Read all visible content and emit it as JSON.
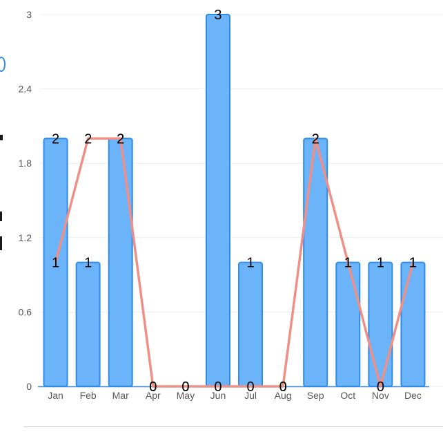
{
  "chart_data": {
    "type": "bar",
    "categories": [
      "Jan",
      "Feb",
      "Mar",
      "Apr",
      "May",
      "Jun",
      "Jul",
      "Aug",
      "Sep",
      "Oct",
      "Nov",
      "Dec"
    ],
    "series": [
      {
        "type": "bar",
        "values": [
          2,
          1,
          2,
          0,
          0,
          3,
          1,
          0,
          2,
          1,
          1,
          1
        ]
      },
      {
        "type": "line",
        "values": [
          1,
          2,
          2,
          0,
          0,
          0,
          0,
          0,
          2,
          1,
          0,
          1
        ]
      }
    ],
    "bar_labels": [
      "2",
      "1",
      "2",
      "0",
      "0",
      "3",
      "1",
      "0",
      "2",
      "1",
      "1",
      "1"
    ],
    "line_labels": [
      "1",
      "2",
      "2",
      "0",
      "0",
      "0",
      "0",
      "0",
      "2",
      "1",
      "0",
      "1"
    ],
    "y_ticks": [
      "0",
      "0.6",
      "1.2",
      "1.8",
      "2.4",
      "3"
    ],
    "y_tick_values": [
      0,
      0.6,
      1.2,
      1.8,
      2.4,
      3
    ],
    "ylim": [
      0,
      3
    ],
    "grid": true,
    "colors": {
      "bar_fill": "#6cb4fa",
      "bar_stroke": "#2f8be6",
      "line": "#ef8f86",
      "grid": "#ececec",
      "axis_text": "#555555",
      "label_text": "#000000"
    }
  }
}
